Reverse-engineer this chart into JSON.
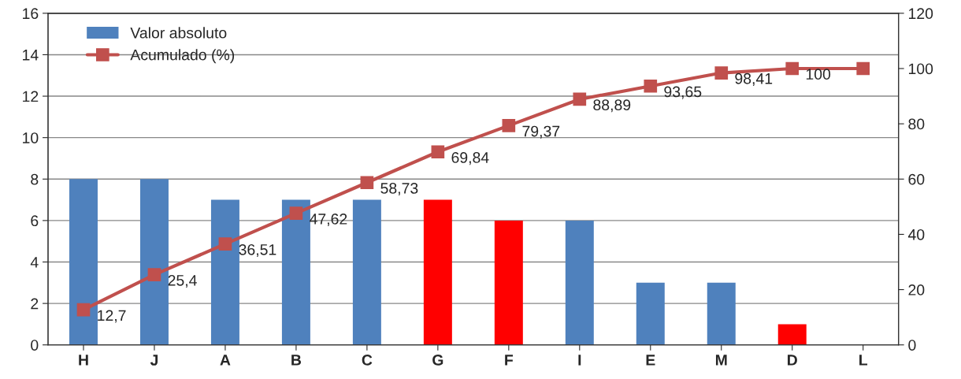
{
  "chart_data": {
    "type": "bar",
    "categories": [
      "H",
      "J",
      "A",
      "B",
      "C",
      "G",
      "F",
      "I",
      "E",
      "M",
      "D",
      "L"
    ],
    "series": [
      {
        "name": "Valor absoluto",
        "color": "#4f81bd",
        "colors": [
          "#4f81bd",
          "#4f81bd",
          "#4f81bd",
          "#4f81bd",
          "#4f81bd",
          "#ff0000",
          "#ff0000",
          "#4f81bd",
          "#4f81bd",
          "#4f81bd",
          "#ff0000",
          "#4f81bd"
        ],
        "values": [
          8,
          8,
          7,
          7,
          7,
          7,
          6,
          6,
          3,
          3,
          1,
          null
        ]
      },
      {
        "name": "Acumulado (%)",
        "type": "line",
        "axis": "y2",
        "color": "#c0504d",
        "marker": "square",
        "values": [
          12.7,
          25.4,
          36.51,
          47.62,
          58.73,
          69.84,
          79.37,
          88.89,
          93.65,
          98.41,
          100,
          100
        ],
        "value_labels": [
          "12,7",
          "25,4",
          "36,51",
          "47,62",
          "58,73",
          "69,84",
          "79,37",
          "88,89",
          "93,65",
          "98,41",
          "100",
          null
        ]
      }
    ],
    "ylim": [
      0,
      16
    ],
    "yticks": [
      0,
      2,
      4,
      6,
      8,
      10,
      12,
      14,
      16
    ],
    "y2lim": [
      0,
      120
    ],
    "y2ticks": [
      0,
      20,
      40,
      60,
      80,
      100,
      120
    ],
    "grid": "y",
    "legend": "top left"
  }
}
